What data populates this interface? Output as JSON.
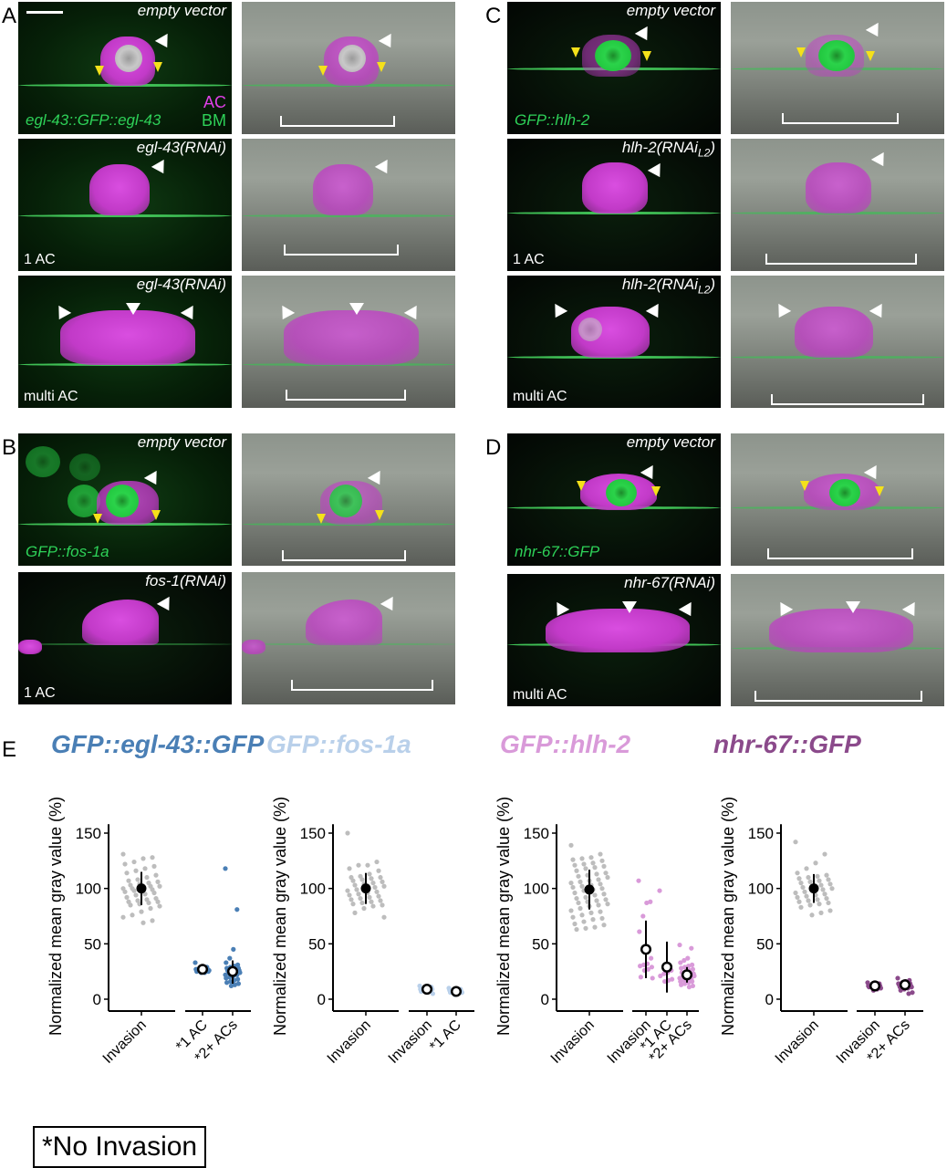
{
  "panels": {
    "A": {
      "label": "A",
      "scalebar": true,
      "rows": [
        {
          "condition": "empty vector",
          "marker": "egl-43::GFP::egl-43",
          "channels": [
            "AC",
            "BM"
          ],
          "phenotype": ""
        },
        {
          "condition": "egl-43(RNAi)",
          "marker": "",
          "phenotype": "1 AC"
        },
        {
          "condition": "egl-43(RNAi)",
          "marker": "",
          "phenotype": "multi AC"
        }
      ]
    },
    "B": {
      "label": "B",
      "rows": [
        {
          "condition": "empty vector",
          "marker": "GFP::fos-1a",
          "phenotype": ""
        },
        {
          "condition": "fos-1(RNAi)",
          "marker": "",
          "phenotype": "1 AC"
        }
      ]
    },
    "C": {
      "label": "C",
      "rows": [
        {
          "condition": "empty vector",
          "marker": "GFP::hlh-2",
          "phenotype": ""
        },
        {
          "condition": "hlh-2(RNAi",
          "condition_sub": "L2",
          "condition_end": ")",
          "marker": "",
          "phenotype": "1 AC"
        },
        {
          "condition": "hlh-2(RNAi",
          "condition_sub": "L2",
          "condition_end": ")",
          "marker": "",
          "phenotype": "multi AC"
        }
      ]
    },
    "D": {
      "label": "D",
      "rows": [
        {
          "condition": "empty vector",
          "marker": "nhr-67::GFP",
          "phenotype": ""
        },
        {
          "condition": "nhr-67(RNAi)",
          "marker": "",
          "phenotype": "multi AC"
        }
      ]
    },
    "E": {
      "label": "E"
    }
  },
  "legend_box": "*No Invasion",
  "colors": {
    "egl43": "#4a7fb5",
    "fos1a": "#b9d0ea",
    "hlh2": "#d99ad9",
    "nhr67": "#8b4a8b",
    "control_points": "#bdbdbd",
    "bm_green": "#2ed158",
    "ac_magenta": "#e040e8",
    "arrow_yellow": "#f5e11a"
  },
  "chart_data": [
    {
      "type": "scatter",
      "title": "GFP::egl-43::GFP",
      "ylabel": "Normalized mean gray value (%)",
      "ylim": [
        -8,
        158
      ],
      "yticks": [
        0,
        50,
        100,
        150
      ],
      "categories": [
        "Invasion",
        "*1 AC",
        "*2+ ACs"
      ],
      "groups": [
        {
          "name": "Invasion",
          "mean": 100,
          "sd_low": 85,
          "sd_high": 115,
          "color": "#bdbdbd",
          "points": [
            131,
            128,
            127,
            124,
            122,
            120,
            118,
            116,
            114,
            112,
            110,
            108,
            107,
            106,
            105,
            104,
            103,
            102,
            102,
            101,
            100,
            100,
            99,
            99,
            98,
            97,
            96,
            95,
            94,
            92,
            91,
            90,
            89,
            88,
            88,
            87,
            86,
            85,
            84,
            82,
            79,
            76,
            74,
            71,
            69
          ]
        },
        {
          "name": "*1 AC",
          "mean": 27,
          "sd_low": 25,
          "sd_high": 29,
          "color": "#4a7fb5",
          "points": [
            33,
            29,
            28,
            28,
            27,
            27,
            26,
            26,
            25,
            25,
            24,
            24,
            27,
            26
          ]
        },
        {
          "name": "*2+ ACs",
          "mean": 25,
          "sd_low": 14,
          "sd_high": 35,
          "color": "#4a7fb5",
          "points": [
            118,
            81,
            45,
            37,
            33,
            31,
            30,
            29,
            28,
            28,
            27,
            27,
            26,
            26,
            25,
            25,
            25,
            24,
            24,
            23,
            23,
            22,
            22,
            21,
            20,
            19,
            18,
            17,
            16,
            15,
            14,
            13,
            12
          ]
        }
      ],
      "xtick_labels": [
        "Invasion",
        "*1 AC",
        "*2+ ACs"
      ]
    },
    {
      "type": "scatter",
      "title": "GFP::fos-1a",
      "ylabel": "Normalized mean gray value (%)",
      "ylim": [
        -8,
        158
      ],
      "yticks": [
        0,
        50,
        100,
        150
      ],
      "categories": [
        "Invasion",
        "Invasion",
        "*1 AC"
      ],
      "groups": [
        {
          "name": "Invasion",
          "mean": 100,
          "sd_low": 86,
          "sd_high": 114,
          "color": "#bdbdbd",
          "points": [
            150,
            124,
            121,
            121,
            118,
            116,
            113,
            111,
            110,
            110,
            109,
            108,
            107,
            106,
            105,
            104,
            103,
            102,
            101,
            100,
            99,
            98,
            97,
            96,
            95,
            94,
            93,
            92,
            91,
            90,
            89,
            88,
            87,
            86,
            85,
            84,
            82,
            78,
            74
          ]
        },
        {
          "name": "Invasion",
          "mean": 9,
          "sd_low": 7,
          "sd_high": 11,
          "color": "#b9d0ea",
          "points": [
            12,
            11,
            10,
            10,
            9,
            9,
            8,
            8,
            7,
            5
          ]
        },
        {
          "name": "*1 AC",
          "mean": 7,
          "sd_low": 6,
          "sd_high": 9,
          "color": "#b9d0ea",
          "points": [
            10,
            9,
            9,
            8,
            8,
            7,
            7,
            7,
            6,
            6,
            5,
            4
          ]
        }
      ],
      "xtick_labels": [
        "Invasion",
        "Invasion",
        "*1 AC"
      ]
    },
    {
      "type": "scatter",
      "title": "GFP::hlh-2",
      "ylabel": "Normalized mean gray value (%)",
      "ylim": [
        -8,
        158
      ],
      "yticks": [
        0,
        50,
        100,
        150
      ],
      "categories": [
        "Invasion",
        "Invasion",
        "*1 AC",
        "*2+ ACs"
      ],
      "groups": [
        {
          "name": "Invasion",
          "mean": 99,
          "sd_low": 81,
          "sd_high": 117,
          "color": "#bdbdbd",
          "points": [
            139,
            131,
            128,
            127,
            126,
            125,
            123,
            122,
            121,
            120,
            119,
            118,
            116,
            114,
            113,
            112,
            111,
            110,
            108,
            107,
            106,
            105,
            104,
            103,
            102,
            101,
            100,
            99,
            98,
            96,
            95,
            94,
            92,
            91,
            90,
            89,
            88,
            87,
            86,
            85,
            84,
            82,
            80,
            79,
            78,
            76,
            74,
            73,
            72,
            70,
            68,
            67,
            65,
            64,
            63
          ]
        },
        {
          "name": "Invasion",
          "mean": 45,
          "sd_low": 19,
          "sd_high": 71,
          "color": "#d99ad9",
          "points": [
            107,
            88,
            87,
            75,
            61,
            37,
            32,
            31,
            30,
            29,
            27,
            26,
            20,
            19
          ]
        },
        {
          "name": "*1 AC",
          "mean": 29,
          "sd_low": 6,
          "sd_high": 52,
          "color": "#d99ad9",
          "points": [
            98,
            26,
            24,
            23,
            21,
            18,
            17,
            16
          ]
        },
        {
          "name": "*2+ ACs",
          "mean": 22,
          "sd_low": 15,
          "sd_high": 29,
          "color": "#d99ad9",
          "points": [
            49,
            46,
            37,
            35,
            33,
            31,
            30,
            29,
            28,
            27,
            26,
            25,
            24,
            23,
            22,
            22,
            21,
            21,
            20,
            20,
            19,
            19,
            18,
            18,
            17,
            16,
            16,
            15,
            14,
            13,
            12,
            11
          ]
        }
      ],
      "xtick_labels": [
        "Invasion",
        "Invasion",
        "*1 AC",
        "*2+ ACs"
      ]
    },
    {
      "type": "scatter",
      "title": "nhr-67::GFP",
      "ylabel": "Normalized mean gray value (%)",
      "ylim": [
        -8,
        158
      ],
      "yticks": [
        0,
        50,
        100,
        150
      ],
      "categories": [
        "Invasion",
        "Invasion",
        "*2+ ACs"
      ],
      "groups": [
        {
          "name": "Invasion",
          "mean": 100,
          "sd_low": 87,
          "sd_high": 113,
          "color": "#bdbdbd",
          "points": [
            142,
            131,
            123,
            118,
            114,
            112,
            111,
            110,
            109,
            108,
            107,
            106,
            105,
            104,
            103,
            102,
            101,
            100,
            99,
            98,
            97,
            96,
            95,
            94,
            93,
            92,
            91,
            90,
            89,
            88,
            87,
            86,
            85,
            83,
            80,
            78,
            76
          ]
        },
        {
          "name": "Invasion",
          "mean": 12,
          "sd_low": 10,
          "sd_high": 14,
          "color": "#8b4a8b",
          "points": [
            15,
            14,
            13,
            13,
            12,
            12,
            12,
            11,
            11,
            10,
            9,
            8
          ]
        },
        {
          "name": "*2+ ACs",
          "mean": 13,
          "sd_low": 10,
          "sd_high": 15,
          "color": "#8b4a8b",
          "points": [
            19,
            17,
            16,
            15,
            14,
            14,
            13,
            13,
            13,
            12,
            12,
            12,
            11,
            11,
            10,
            9,
            8,
            6,
            5
          ]
        }
      ],
      "xtick_labels": [
        "Invasion",
        "Invasion",
        "*2+ ACs"
      ]
    }
  ]
}
